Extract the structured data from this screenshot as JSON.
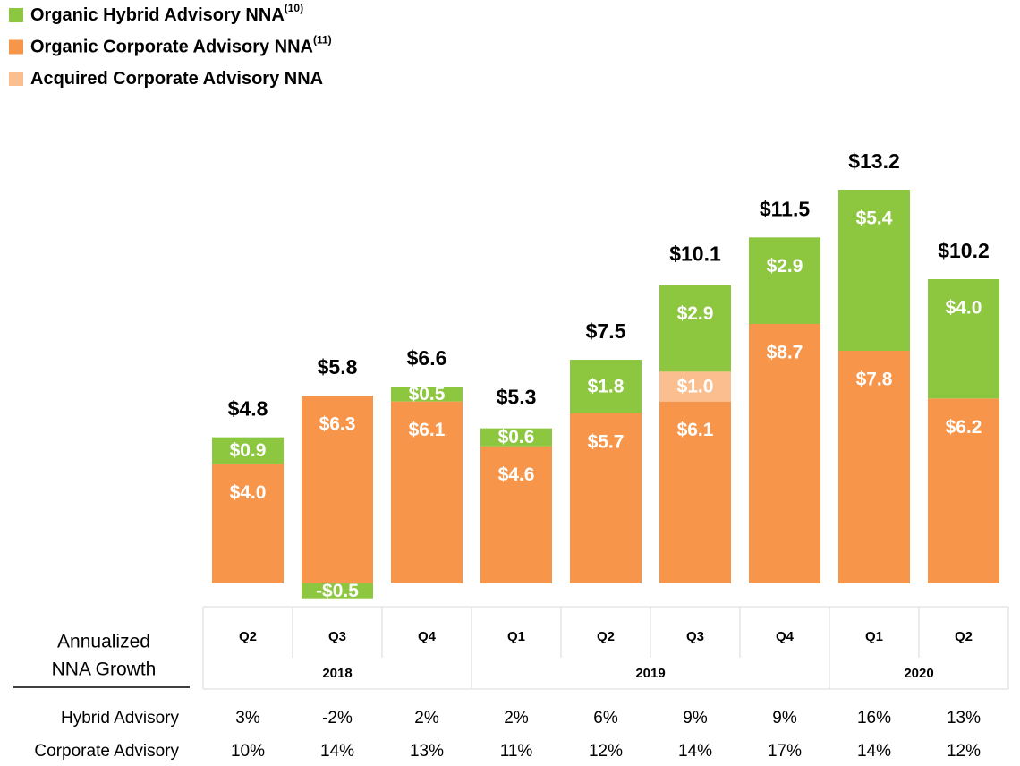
{
  "chart_data": {
    "type": "stacked_bar",
    "categories": [
      "Q2",
      "Q3",
      "Q4",
      "Q1",
      "Q2",
      "Q3",
      "Q4",
      "Q1",
      "Q2"
    ],
    "year_groups": [
      {
        "label": "2018",
        "count": 3
      },
      {
        "label": "2019",
        "count": 4
      },
      {
        "label": "2020",
        "count": 2
      }
    ],
    "series": [
      {
        "name": "Organic Hybrid Advisory NNA",
        "footnote": "(10)",
        "color": "#8dc63f",
        "values": [
          0.9,
          -0.5,
          0.5,
          0.6,
          1.8,
          2.9,
          2.9,
          5.4,
          4.0
        ],
        "value_labels": [
          "$0.9",
          "-$0.5",
          "$0.5",
          "$0.6",
          "$1.8",
          "$2.9",
          "$2.9",
          "$5.4",
          "$4.0"
        ]
      },
      {
        "name": "Organic Corporate Advisory NNA",
        "footnote": "(11)",
        "color": "#f7964a",
        "values": [
          4.0,
          6.3,
          6.1,
          4.6,
          5.7,
          6.1,
          8.7,
          7.8,
          6.2
        ],
        "value_labels": [
          "$4.0",
          "$6.3",
          "$6.1",
          "$4.6",
          "$5.7",
          "$6.1",
          "$8.7",
          "$7.8",
          "$6.2"
        ]
      },
      {
        "name": "Acquired Corporate Advisory NNA",
        "color": "#fbbf8f",
        "values": [
          null,
          null,
          null,
          null,
          null,
          1.0,
          null,
          null,
          null
        ],
        "value_labels": [
          null,
          null,
          null,
          null,
          null,
          "$1.0",
          null,
          null,
          null
        ]
      }
    ],
    "stack_order": [
      1,
      2,
      0
    ],
    "totals": [
      4.8,
      5.8,
      6.6,
      5.3,
      7.5,
      10.1,
      11.5,
      13.2,
      10.2
    ],
    "total_labels": [
      "$4.8",
      "$5.8",
      "$6.6",
      "$5.3",
      "$7.5",
      "$10.1",
      "$11.5",
      "$13.2",
      "$10.2"
    ],
    "table": {
      "title": [
        "Annualized",
        "NNA Growth"
      ],
      "rows": [
        {
          "label": "Hybrid Advisory",
          "cells": [
            "3%",
            "-2%",
            "2%",
            "2%",
            "6%",
            "9%",
            "9%",
            "16%",
            "13%"
          ]
        },
        {
          "label": "Corporate Advisory",
          "cells": [
            "10%",
            "14%",
            "13%",
            "11%",
            "12%",
            "14%",
            "17%",
            "14%",
            "12%"
          ]
        }
      ]
    }
  }
}
